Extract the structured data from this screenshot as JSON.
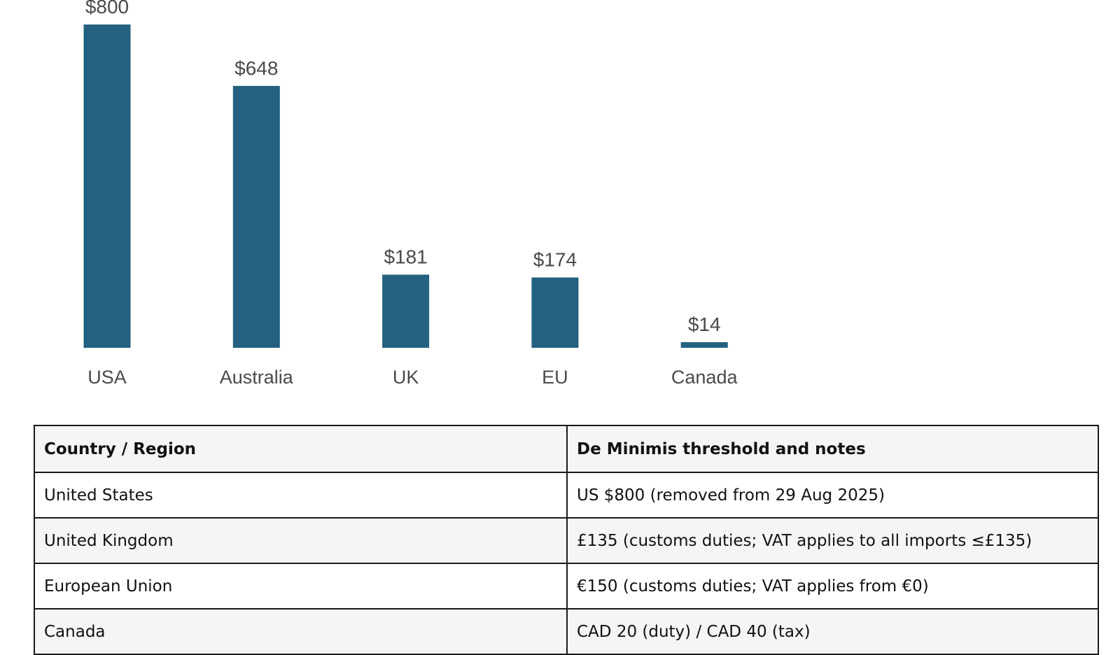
{
  "chart_data": {
    "type": "bar",
    "title": "",
    "xlabel": "",
    "ylabel": "",
    "categories": [
      "USA",
      "Australia",
      "UK",
      "EU",
      "Canada"
    ],
    "values": [
      800,
      648,
      181,
      174,
      14
    ],
    "data_labels": [
      "$800",
      "$648",
      "$181",
      "$174",
      "$14"
    ],
    "ylim": [
      0,
      800
    ],
    "grid": false,
    "bar_color": "#24607f"
  },
  "table": {
    "headers": [
      "Country / Region",
      "De Minimis threshold and notes"
    ],
    "rows": [
      [
        "United States",
        "US $800 (removed from 29 Aug 2025)"
      ],
      [
        "United Kingdom",
        "£135 (customs duties; VAT applies to all imports ≤£135)"
      ],
      [
        "European Union",
        "€150 (customs duties; VAT applies from €0)"
      ],
      [
        "Canada",
        "CAD 20 (duty) / CAD 40 (tax)"
      ]
    ]
  }
}
